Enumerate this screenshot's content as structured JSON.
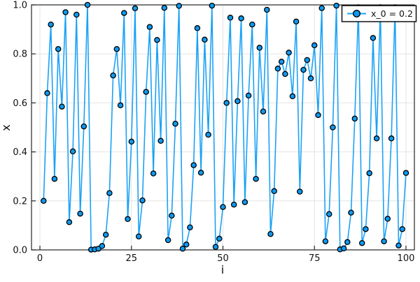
{
  "figure": {
    "background": "#ffffff",
    "legend": {
      "label": "x_0 = 0.2",
      "position": "top-right"
    }
  },
  "chart_data": {
    "type": "line",
    "title": "",
    "xlabel": "i",
    "ylabel": "x",
    "legend_position": "top-right",
    "grid": true,
    "x_axis": {
      "min": -2.3,
      "max": 102.3,
      "ticks": [
        0,
        25,
        50,
        75,
        100
      ],
      "tick_labels": [
        "0",
        "25",
        "50",
        "75",
        "100"
      ]
    },
    "y_axis": {
      "min": 0,
      "max": 1,
      "ticks": [
        0.0,
        0.2,
        0.4,
        0.6,
        0.8,
        1.0
      ],
      "tick_labels": [
        "0.0",
        "0.2",
        "0.4",
        "0.6",
        "0.8",
        "1.0"
      ]
    },
    "series": [
      {
        "name": "x_0 = 0.2",
        "marker": "circle",
        "x_range": [
          1,
          100
        ],
        "x_rule": "i = 1..100 (index of iterate, x_0 plotted at i=1)",
        "y": [
          0.2,
          0.64,
          0.92,
          0.29,
          0.82,
          0.585,
          0.97,
          0.113,
          0.402,
          0.96,
          0.148,
          0.504,
          1.0,
          0.001,
          0.002,
          0.005,
          0.016,
          0.062,
          0.232,
          0.712,
          0.82,
          0.59,
          0.967,
          0.126,
          0.442,
          0.986,
          0.055,
          0.202,
          0.645,
          0.91,
          0.312,
          0.857,
          0.445,
          0.988,
          0.04,
          0.14,
          0.515,
          0.996,
          0.005,
          0.022,
          0.092,
          0.346,
          0.905,
          0.315,
          0.858,
          0.47,
          0.997,
          0.012,
          0.046,
          0.175,
          0.6,
          0.948,
          0.185,
          0.607,
          0.945,
          0.195,
          0.63,
          0.92,
          0.29,
          0.825,
          0.565,
          0.98,
          0.065,
          0.24,
          0.74,
          0.768,
          0.718,
          0.805,
          0.627,
          0.932,
          0.238,
          0.735,
          0.775,
          0.7,
          0.835,
          0.55,
          0.987,
          0.035,
          0.146,
          0.5,
          0.997,
          0.002,
          0.006,
          0.032,
          0.152,
          0.536,
          0.99,
          0.028,
          0.085,
          0.313,
          0.865,
          0.455,
          0.99,
          0.035,
          0.127,
          0.455,
          0.99,
          0.018,
          0.085,
          0.314
        ]
      }
    ],
    "colors": {
      "line": "#1ba2f5",
      "marker_fill": "#0d9af2",
      "marker_stroke": "#000000",
      "grid": "#e4e4e4",
      "frame": "#262626",
      "text": "#111111",
      "legend_border": "#000000",
      "legend_background": "#ffffff"
    },
    "marker_radius": 3.6,
    "line_width": 1.6
  }
}
